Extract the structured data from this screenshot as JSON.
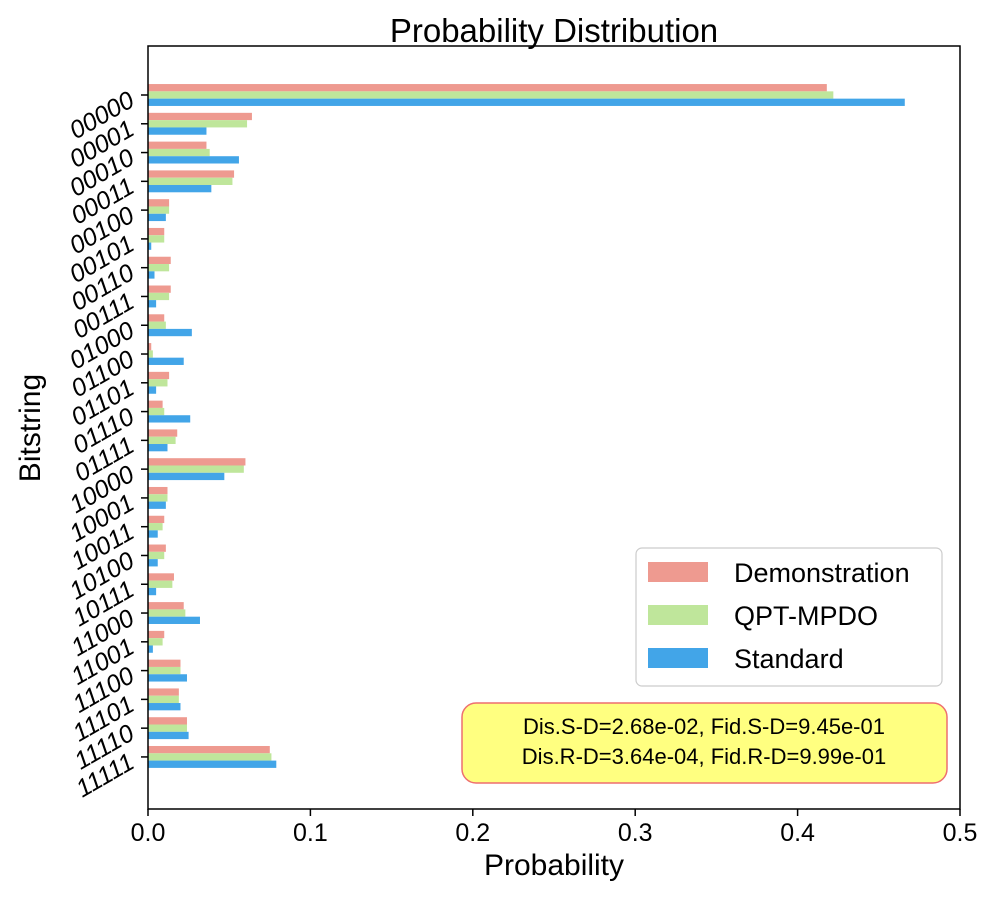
{
  "chart_data": {
    "type": "bar",
    "orientation": "horizontal",
    "title": "Probability Distribution",
    "xlabel": "Probability",
    "ylabel": "Bitstring",
    "xlim": [
      0.0,
      0.5
    ],
    "xticks": [
      "0.0",
      "0.1",
      "0.2",
      "0.3",
      "0.4",
      "0.5"
    ],
    "grid": false,
    "legend_position": "right",
    "categories": [
      "00000",
      "00001",
      "00010",
      "00011",
      "00100",
      "00101",
      "00110",
      "00111",
      "01000",
      "01100",
      "01101",
      "01110",
      "01111",
      "10000",
      "10001",
      "10011",
      "10100",
      "10111",
      "11000",
      "11001",
      "11100",
      "11101",
      "11110",
      "11111"
    ],
    "series": [
      {
        "name": "Demonstration",
        "color": "#ee9a90",
        "values": [
          0.418,
          0.064,
          0.036,
          0.053,
          0.013,
          0.01,
          0.014,
          0.014,
          0.01,
          0.002,
          0.013,
          0.009,
          0.018,
          0.06,
          0.012,
          0.01,
          0.011,
          0.016,
          0.022,
          0.01,
          0.02,
          0.019,
          0.024,
          0.075
        ]
      },
      {
        "name": "QPT-MPDO",
        "color": "#bfe69b",
        "values": [
          0.422,
          0.061,
          0.038,
          0.052,
          0.013,
          0.01,
          0.013,
          0.013,
          0.011,
          0.003,
          0.012,
          0.01,
          0.017,
          0.059,
          0.012,
          0.009,
          0.01,
          0.015,
          0.023,
          0.009,
          0.02,
          0.019,
          0.024,
          0.076
        ]
      },
      {
        "name": "Standard",
        "color": "#42a5e8",
        "values": [
          0.466,
          0.036,
          0.056,
          0.039,
          0.011,
          0.002,
          0.004,
          0.005,
          0.027,
          0.022,
          0.005,
          0.026,
          0.012,
          0.047,
          0.011,
          0.006,
          0.006,
          0.005,
          0.032,
          0.003,
          0.024,
          0.02,
          0.025,
          0.079
        ]
      }
    ],
    "annotation": {
      "line1": "Dis.S-D=2.68e-02, Fid.S-D=9.45e-01",
      "line2": "Dis.R-D=3.64e-04, Fid.R-D=9.99e-01",
      "facecolor": "#ffff80",
      "edgecolor": "#ee6f6f"
    }
  }
}
